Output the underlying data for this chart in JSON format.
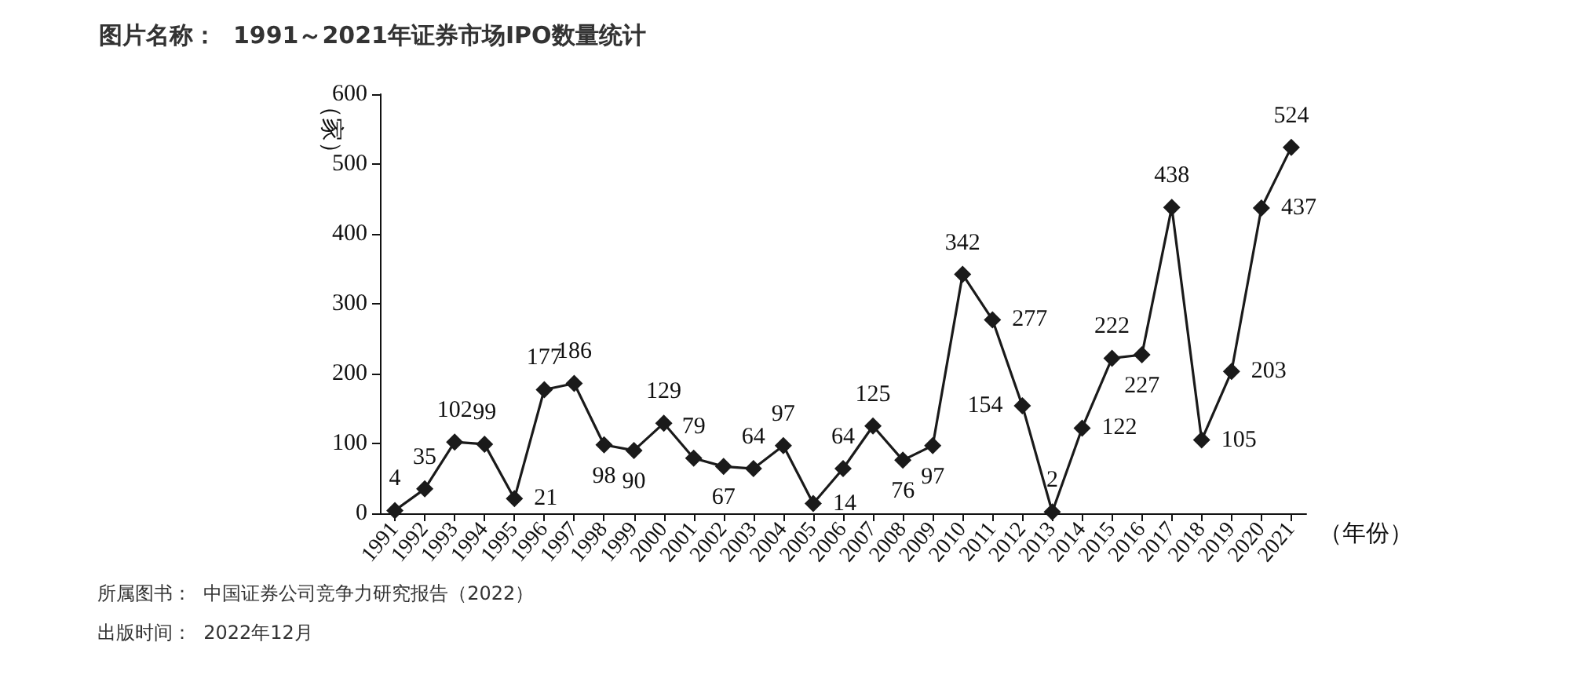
{
  "chart_data": {
    "type": "line",
    "title": "图片名称：  1991～2021年证券市场IPO数量统计",
    "ylabel": "（家）",
    "xlabel": "（年份）",
    "categories": [
      "1991",
      "1992",
      "1993",
      "1994",
      "1995",
      "1996",
      "1997",
      "1998",
      "1999",
      "2000",
      "2001",
      "2002",
      "2003",
      "2004",
      "2005",
      "2006",
      "2007",
      "2008",
      "2009",
      "2010",
      "2011",
      "2012",
      "2013",
      "2014",
      "2015",
      "2016",
      "2017",
      "2018",
      "2019",
      "2020",
      "2021"
    ],
    "series": [
      {
        "color": "#1a1a1a",
        "values": [
          4,
          35,
          102,
          99,
          21,
          177,
          186,
          98,
          90,
          129,
          79,
          67,
          64,
          97,
          14,
          64,
          125,
          76,
          97,
          342,
          277,
          154,
          2,
          122,
          222,
          227,
          438,
          105,
          203,
          437,
          524
        ]
      }
    ],
    "ylim": [
      0,
      600
    ],
    "yticks": [
      0,
      100,
      200,
      300,
      400,
      500,
      600
    ],
    "grid": false,
    "marker": "diamond",
    "line_style": "solid",
    "data_labels": true,
    "annotations": [
      "所属图书：  中国证券公司竞争力研究报告（2022）",
      "出版时间：  2022年12月"
    ]
  }
}
